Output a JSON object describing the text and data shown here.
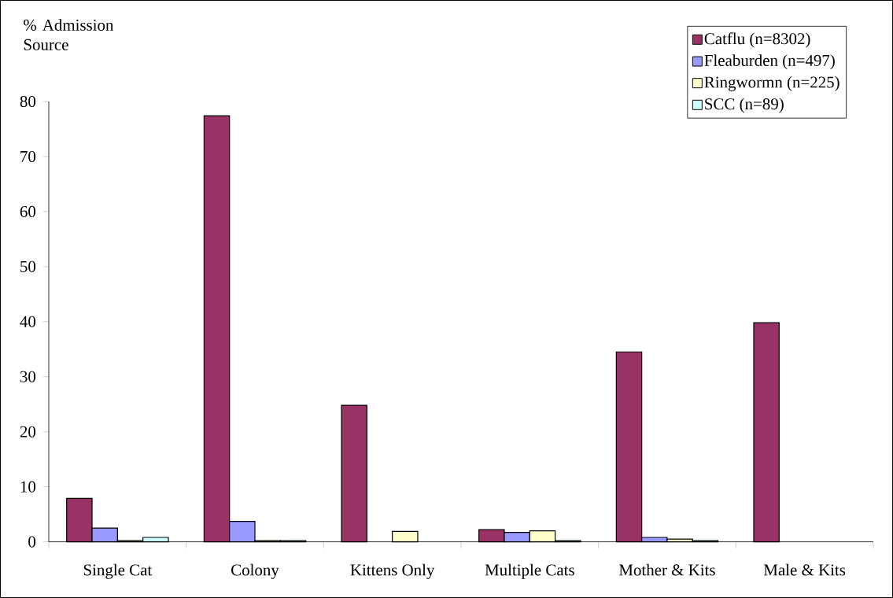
{
  "chart_data": {
    "type": "bar",
    "ylabel": "% Admission Source",
    "categories": [
      "Single Cat",
      "Colony",
      "Kittens Only",
      "Multiple Cats",
      "Mother & Kits",
      "Male & Kits"
    ],
    "series": [
      {
        "name": "Catflu (n=8302)",
        "color": "#993366",
        "values": [
          7.9,
          77.4,
          24.8,
          2.2,
          34.5,
          39.8
        ]
      },
      {
        "name": "Fleaburden (n=497)",
        "color": "#9999ff",
        "values": [
          2.5,
          3.7,
          null,
          1.7,
          0.8,
          null
        ]
      },
      {
        "name": "Ringwormn (n=225)",
        "color": "#ffffcc",
        "values": [
          0.2,
          0.2,
          1.9,
          2.0,
          0.5,
          null
        ]
      },
      {
        "name": "SCC (n=89)",
        "color": "#ccffff",
        "values": [
          0.8,
          0.2,
          null,
          0.2,
          0.2,
          null
        ]
      }
    ],
    "ylim": [
      0,
      80
    ],
    "yticks": [
      0,
      10,
      20,
      30,
      40,
      50,
      60,
      70,
      80
    ],
    "grid": false,
    "legend": "top right"
  }
}
